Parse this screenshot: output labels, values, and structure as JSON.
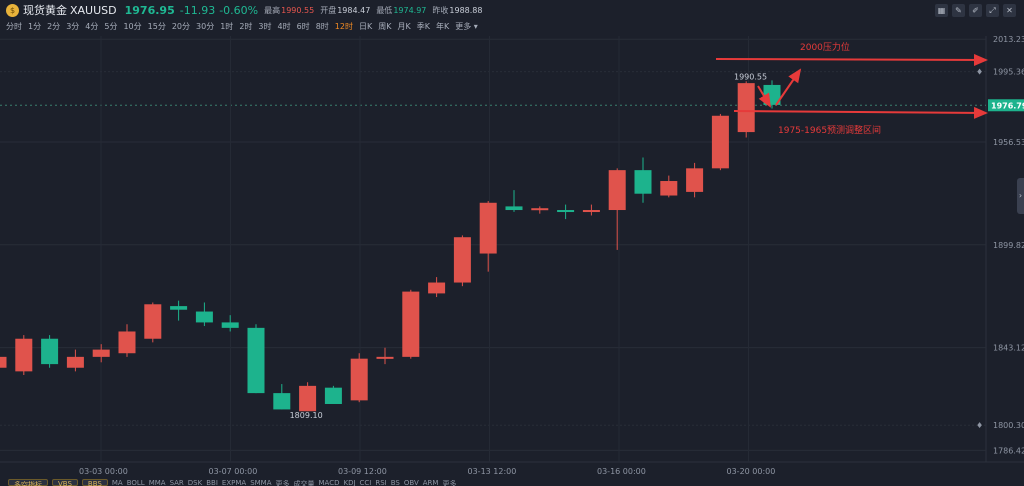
{
  "header": {
    "name": "现货黄金",
    "symbol": "XAUUSD",
    "price": "1976.95",
    "change": "-11.93",
    "change_pct": "-0.60%",
    "high_label": "最高",
    "high": "1990.55",
    "open_label": "开盘",
    "open": "1984.47",
    "low_label": "最低",
    "low": "1974.97",
    "prev_label": "昨收",
    "prev": "1988.88"
  },
  "periods": [
    "分时",
    "1分",
    "2分",
    "3分",
    "4分",
    "5分",
    "10分",
    "15分",
    "20分",
    "30分",
    "1时",
    "2时",
    "3时",
    "4时",
    "6时",
    "8时",
    "12时",
    "日K",
    "周K",
    "月K",
    "季K",
    "年K",
    "更多"
  ],
  "active_period": "12时",
  "toolbar_icons": [
    "layout-icon",
    "edit-icon",
    "draw-icon",
    "expand-icon",
    "close-icon"
  ],
  "bottom_bar": {
    "buttons": [
      "多空指标",
      "VBS",
      "BBS"
    ],
    "indicators": [
      "MA",
      "BOLL",
      "MMA",
      "SAR",
      "DSK",
      "BBI",
      "EXPMA",
      "SMMA",
      "更多",
      "成交量",
      "MACD",
      "KDJ",
      "CCI",
      "RSI",
      "BS",
      "OBV",
      "ARM",
      "更多"
    ]
  },
  "colors": {
    "up": "#e0534c",
    "down": "#1db38d",
    "annotation": "#e63a3a",
    "background": "#1c202b"
  },
  "chart_data": {
    "type": "candlestick",
    "ylim": [
      1780,
      2015
    ],
    "y_ticks": [
      "2013.23",
      "1995.36",
      "1976.79",
      "1956.53",
      "1899.82",
      "1843.12",
      "1800.30",
      "1786.42"
    ],
    "x_ticks": [
      "03-03 00:00",
      "03-07 00:00",
      "03-09 12:00",
      "03-13 12:00",
      "03-16 00:00",
      "03-20 00:00"
    ],
    "current_price": "1976.79",
    "high_marker": "1990.55",
    "low_marker": "1809.10",
    "candles": [
      {
        "o": 1832,
        "h": 1840,
        "l": 1826,
        "c": 1838
      },
      {
        "o": 1830,
        "h": 1850,
        "l": 1828,
        "c": 1848
      },
      {
        "o": 1848,
        "h": 1850,
        "l": 1832,
        "c": 1834
      },
      {
        "o": 1832,
        "h": 1842,
        "l": 1830,
        "c": 1838
      },
      {
        "o": 1838,
        "h": 1845,
        "l": 1835,
        "c": 1842
      },
      {
        "o": 1840,
        "h": 1856,
        "l": 1838,
        "c": 1852
      },
      {
        "o": 1848,
        "h": 1868,
        "l": 1846,
        "c": 1867
      },
      {
        "o": 1866,
        "h": 1869,
        "l": 1858,
        "c": 1864
      },
      {
        "o": 1863,
        "h": 1868,
        "l": 1855,
        "c": 1857
      },
      {
        "o": 1857,
        "h": 1861,
        "l": 1852,
        "c": 1854
      },
      {
        "o": 1854,
        "h": 1856,
        "l": 1818,
        "c": 1818
      },
      {
        "o": 1818,
        "h": 1823,
        "l": 1809,
        "c": 1809
      },
      {
        "o": 1808,
        "h": 1824,
        "l": 1808,
        "c": 1822
      },
      {
        "o": 1821,
        "h": 1822,
        "l": 1812,
        "c": 1812
      },
      {
        "o": 1814,
        "h": 1840,
        "l": 1813,
        "c": 1837
      },
      {
        "o": 1837,
        "h": 1843,
        "l": 1834,
        "c": 1838
      },
      {
        "o": 1838,
        "h": 1875,
        "l": 1837,
        "c": 1874
      },
      {
        "o": 1873,
        "h": 1882,
        "l": 1871,
        "c": 1879
      },
      {
        "o": 1879,
        "h": 1905,
        "l": 1877,
        "c": 1904
      },
      {
        "o": 1895,
        "h": 1924,
        "l": 1885,
        "c": 1923
      },
      {
        "o": 1921,
        "h": 1930,
        "l": 1918,
        "c": 1919
      },
      {
        "o": 1920,
        "h": 1921,
        "l": 1917,
        "c": 1920
      },
      {
        "o": 1919,
        "h": 1922,
        "l": 1914,
        "c": 1918
      },
      {
        "o": 1918,
        "h": 1922,
        "l": 1916,
        "c": 1919
      },
      {
        "o": 1919,
        "h": 1942,
        "l": 1897,
        "c": 1941
      },
      {
        "o": 1941,
        "h": 1948,
        "l": 1923,
        "c": 1928
      },
      {
        "o": 1927,
        "h": 1938,
        "l": 1926,
        "c": 1935
      },
      {
        "o": 1929,
        "h": 1945,
        "l": 1926,
        "c": 1942
      },
      {
        "o": 1942,
        "h": 1972,
        "l": 1941,
        "c": 1971
      },
      {
        "o": 1962,
        "h": 1990,
        "l": 1959,
        "c": 1989
      },
      {
        "o": 1988,
        "h": 1990.55,
        "l": 1975,
        "c": 1977
      }
    ],
    "annotations": [
      {
        "text": "2000压力位"
      },
      {
        "text": "1975-1965预测调整区间"
      }
    ]
  }
}
